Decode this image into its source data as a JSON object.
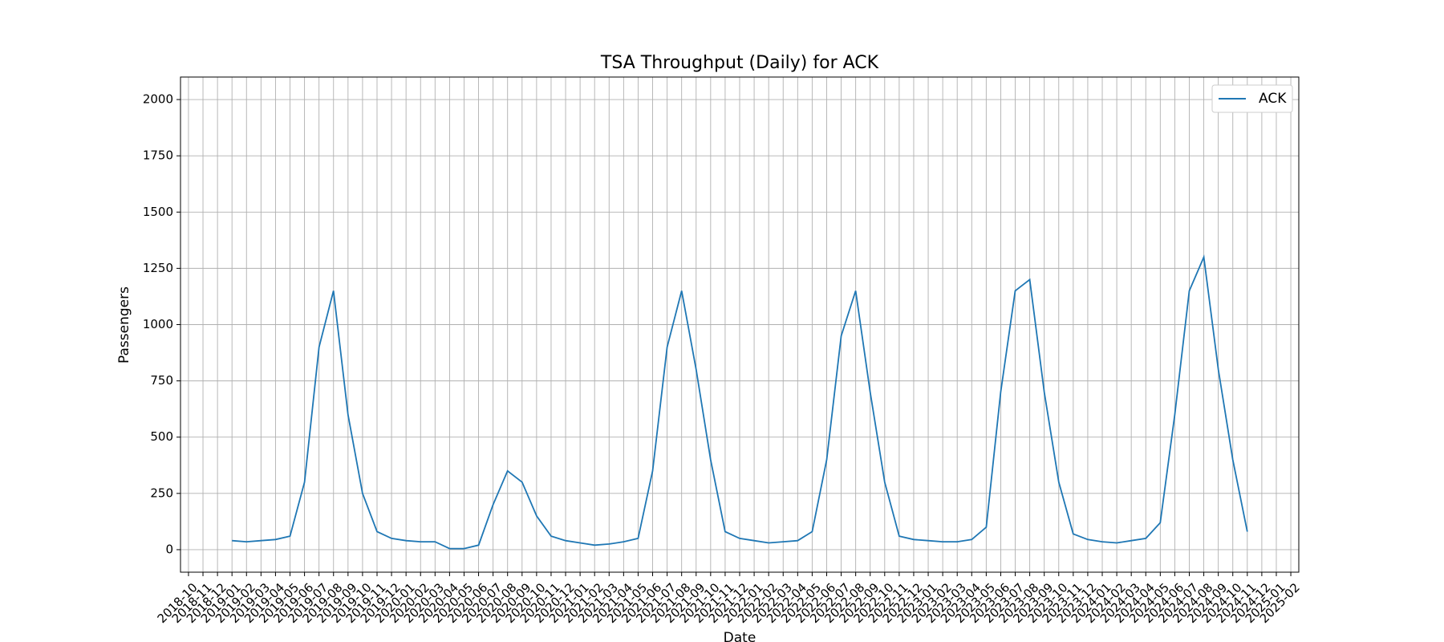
{
  "chart_data": {
    "type": "line",
    "title": "TSA Throughput (Daily) for ACK",
    "x_label": "Date",
    "y_label": "Passengers",
    "categories": [
      "2018-10",
      "2018-11",
      "2018-12",
      "2019-01",
      "2019-02",
      "2019-03",
      "2019-04",
      "2019-05",
      "2019-06",
      "2019-07",
      "2019-08",
      "2019-09",
      "2019-10",
      "2019-11",
      "2019-12",
      "2020-01",
      "2020-02",
      "2020-03",
      "2020-04",
      "2020-05",
      "2020-06",
      "2020-07",
      "2020-08",
      "2020-09",
      "2020-10",
      "2020-11",
      "2020-12",
      "2021-01",
      "2021-02",
      "2021-03",
      "2021-04",
      "2021-05",
      "2021-06",
      "2021-07",
      "2021-08",
      "2021-09",
      "2021-10",
      "2021-11",
      "2021-12",
      "2022-01",
      "2022-02",
      "2022-03",
      "2022-04",
      "2022-05",
      "2022-06",
      "2022-07",
      "2022-08",
      "2022-09",
      "2022-10",
      "2022-11",
      "2022-12",
      "2023-01",
      "2023-02",
      "2023-03",
      "2023-04",
      "2023-05",
      "2023-06",
      "2023-07",
      "2023-08",
      "2023-09",
      "2023-10",
      "2023-11",
      "2023-12",
      "2024-01",
      "2024-02",
      "2024-03",
      "2024-04",
      "2024-05",
      "2024-06",
      "2024-07",
      "2024-08",
      "2024-09",
      "2024-10",
      "2024-11",
      "2024-12",
      "2025-01",
      "2025-02"
    ],
    "series": [
      {
        "name": "ACK",
        "color": "#1f77b4",
        "values": [
          null,
          null,
          null,
          40,
          35,
          40,
          45,
          60,
          300,
          900,
          1150,
          600,
          250,
          80,
          50,
          40,
          35,
          35,
          5,
          5,
          20,
          200,
          350,
          300,
          150,
          60,
          40,
          30,
          20,
          25,
          35,
          50,
          350,
          900,
          1150,
          800,
          400,
          80,
          50,
          40,
          30,
          35,
          40,
          80,
          400,
          950,
          1150,
          700,
          300,
          60,
          45,
          40,
          35,
          35,
          45,
          100,
          700,
          1150,
          1200,
          700,
          300,
          70,
          45,
          35,
          30,
          40,
          50,
          120,
          600,
          1150,
          1300,
          800,
          400,
          80,
          null,
          null,
          null
        ]
      }
    ],
    "ylim": [
      -100,
      2100
    ],
    "yticks": [
      0,
      250,
      500,
      750,
      1000,
      1250,
      1500,
      1750,
      2000
    ],
    "grid": true,
    "legend": "upper right"
  }
}
